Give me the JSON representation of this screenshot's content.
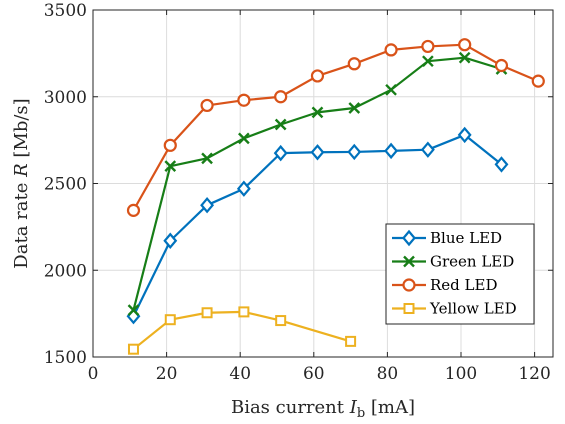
{
  "chart_data": {
    "type": "line",
    "xlabel": {
      "prefix": "Bias current ",
      "var": "I",
      "sub": "b",
      "suffix": " [mA]"
    },
    "ylabel": {
      "prefix": "Data rate ",
      "var": "R",
      "suffix": " [Mb/s]"
    },
    "xlim": [
      0,
      125
    ],
    "ylim": [
      1500,
      3500
    ],
    "xticks": [
      0,
      20,
      40,
      60,
      80,
      100,
      120
    ],
    "yticks": [
      1500,
      2000,
      2500,
      3000,
      3500
    ],
    "grid": true,
    "legend_position": "lower-right",
    "series": [
      {
        "name": "Blue LED",
        "color": "#0072BD",
        "marker": "diamond",
        "x": [
          11,
          21,
          31,
          41,
          51,
          61,
          71,
          81,
          91,
          101,
          111
        ],
        "y": [
          1735,
          2170,
          2375,
          2470,
          2675,
          2680,
          2682,
          2688,
          2695,
          2780,
          2610
        ]
      },
      {
        "name": "Green LED",
        "color": "#177E17",
        "marker": "x",
        "x": [
          11,
          21,
          31,
          41,
          51,
          61,
          71,
          81,
          91,
          101,
          111
        ],
        "y": [
          1770,
          2600,
          2645,
          2760,
          2840,
          2910,
          2935,
          3040,
          3205,
          3225,
          3160
        ]
      },
      {
        "name": "Red LED",
        "color": "#D95319",
        "marker": "circle",
        "x": [
          11,
          21,
          31,
          41,
          51,
          61,
          71,
          81,
          91,
          101,
          111,
          121
        ],
        "y": [
          2345,
          2720,
          2950,
          2980,
          3000,
          3120,
          3190,
          3270,
          3290,
          3300,
          3180,
          3090
        ]
      },
      {
        "name": "Yellow LED",
        "color": "#EDB120",
        "marker": "square",
        "x": [
          11,
          21,
          31,
          41,
          51,
          70
        ],
        "y": [
          1545,
          1715,
          1755,
          1760,
          1710,
          1590
        ]
      }
    ]
  }
}
